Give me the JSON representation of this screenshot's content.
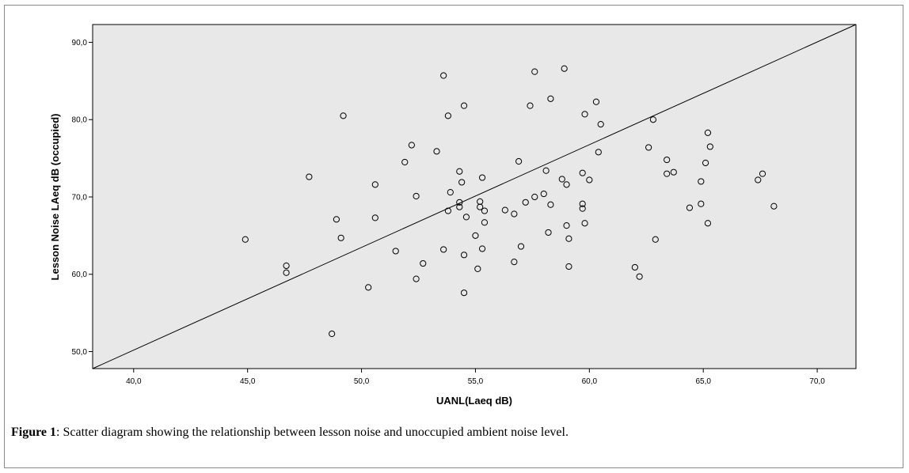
{
  "caption": {
    "label": "Figure 1",
    "text": ": Scatter diagram showing the relationship between lesson noise and unoccupied ambient noise level."
  },
  "colors": {
    "plot_background": "#e8e8e8",
    "marker_stroke": "#000000",
    "line": "#000000"
  },
  "chart_data": {
    "type": "scatter",
    "title": "",
    "xlabel": "UANL(Laeq dB)",
    "ylabel": "Lesson Noise LAeq dB  (occupied)",
    "xlim": [
      38.2,
      71.7
    ],
    "ylim": [
      47.8,
      92.3
    ],
    "xticks": [
      "40,0",
      "45,0",
      "50,0",
      "55,0",
      "60,0",
      "65,0",
      "70,0"
    ],
    "yticks": [
      "50,0",
      "60,0",
      "70,0",
      "80,0",
      "90,0"
    ],
    "grid": false,
    "fit_line": {
      "x": [
        38.2,
        71.7
      ],
      "y": [
        47.8,
        92.3
      ]
    },
    "series": [
      {
        "points": [
          [
            44.9,
            64.5
          ],
          [
            46.7,
            61.1
          ],
          [
            46.7,
            60.2
          ],
          [
            47.7,
            72.6
          ],
          [
            48.7,
            52.3
          ],
          [
            48.9,
            67.1
          ],
          [
            49.1,
            64.7
          ],
          [
            49.2,
            80.5
          ],
          [
            50.3,
            58.3
          ],
          [
            50.6,
            71.6
          ],
          [
            50.6,
            67.3
          ],
          [
            51.5,
            63.0
          ],
          [
            51.9,
            74.5
          ],
          [
            52.2,
            76.7
          ],
          [
            52.4,
            70.1
          ],
          [
            52.4,
            59.4
          ],
          [
            52.7,
            61.4
          ],
          [
            53.3,
            75.9
          ],
          [
            53.6,
            85.7
          ],
          [
            53.6,
            63.2
          ],
          [
            53.8,
            80.5
          ],
          [
            53.8,
            68.2
          ],
          [
            53.9,
            70.6
          ],
          [
            54.3,
            73.3
          ],
          [
            54.3,
            69.3
          ],
          [
            54.3,
            68.7
          ],
          [
            54.4,
            71.9
          ],
          [
            54.5,
            81.8
          ],
          [
            54.5,
            62.5
          ],
          [
            54.5,
            57.6
          ],
          [
            54.6,
            67.4
          ],
          [
            55.0,
            65.0
          ],
          [
            55.1,
            60.7
          ],
          [
            55.2,
            69.4
          ],
          [
            55.2,
            68.7
          ],
          [
            55.3,
            72.5
          ],
          [
            55.3,
            63.3
          ],
          [
            55.4,
            68.2
          ],
          [
            55.4,
            66.7
          ],
          [
            56.3,
            68.3
          ],
          [
            56.7,
            67.8
          ],
          [
            56.7,
            61.6
          ],
          [
            56.9,
            74.6
          ],
          [
            57.0,
            63.6
          ],
          [
            57.2,
            69.3
          ],
          [
            57.4,
            81.8
          ],
          [
            57.6,
            86.2
          ],
          [
            57.6,
            70.0
          ],
          [
            58.0,
            70.4
          ],
          [
            58.1,
            73.4
          ],
          [
            58.2,
            65.4
          ],
          [
            58.3,
            82.7
          ],
          [
            58.3,
            69.0
          ],
          [
            58.8,
            72.3
          ],
          [
            58.9,
            86.6
          ],
          [
            59.0,
            71.6
          ],
          [
            59.0,
            66.3
          ],
          [
            59.1,
            64.6
          ],
          [
            59.1,
            61.0
          ],
          [
            59.7,
            73.1
          ],
          [
            59.7,
            69.1
          ],
          [
            59.7,
            68.5
          ],
          [
            59.8,
            80.7
          ],
          [
            59.8,
            66.6
          ],
          [
            60.0,
            72.2
          ],
          [
            60.3,
            82.3
          ],
          [
            60.4,
            75.8
          ],
          [
            60.5,
            79.4
          ],
          [
            62.0,
            60.9
          ],
          [
            62.2,
            59.7
          ],
          [
            62.6,
            76.4
          ],
          [
            62.8,
            80.0
          ],
          [
            62.9,
            64.5
          ],
          [
            63.4,
            74.8
          ],
          [
            63.4,
            73.0
          ],
          [
            63.7,
            73.2
          ],
          [
            64.4,
            68.6
          ],
          [
            64.9,
            72.0
          ],
          [
            64.9,
            69.1
          ],
          [
            65.1,
            74.4
          ],
          [
            65.2,
            78.3
          ],
          [
            65.2,
            66.6
          ],
          [
            65.3,
            76.5
          ],
          [
            67.4,
            72.2
          ],
          [
            67.6,
            73.0
          ],
          [
            68.1,
            68.8
          ]
        ]
      }
    ]
  }
}
